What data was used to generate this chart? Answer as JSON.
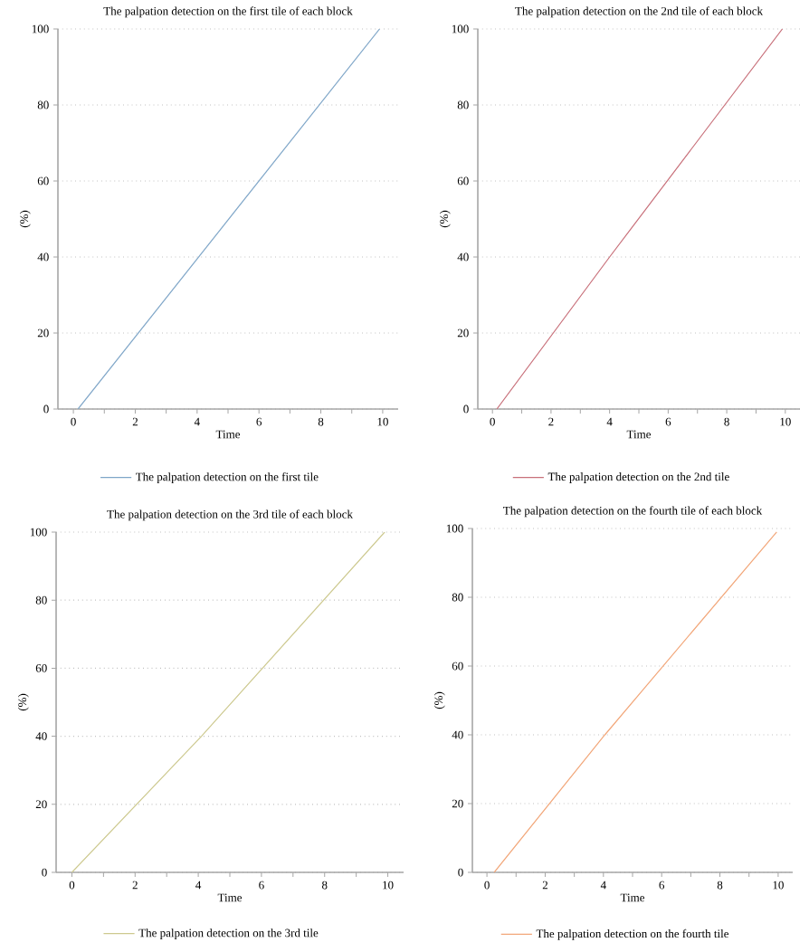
{
  "chart_data": [
    {
      "type": "line",
      "title": "The palpation detection on the first tile of each block",
      "xlabel": "Time",
      "ylabel": "(%)",
      "xlim": [
        -0.5,
        10.5
      ],
      "ylim": [
        0,
        100
      ],
      "xticks": [
        0,
        {
          "value": 1,
          "label": null
        },
        2,
        {
          "value": 3,
          "label": null
        },
        4,
        {
          "value": 5,
          "label": null
        },
        6,
        {
          "value": 7,
          "label": null
        },
        8,
        {
          "value": 9,
          "label": null
        },
        10
      ],
      "yticks": [
        0,
        20,
        40,
        60,
        80,
        100
      ],
      "grid": "y",
      "legend": "bottom",
      "series": [
        {
          "name": "The palpation detection on the first tile",
          "color": "#7fa6c8",
          "x": [
            0.15,
            4.05,
            9.9
          ],
          "values": [
            0,
            40,
            100
          ]
        }
      ]
    },
    {
      "type": "line",
      "title": "The palpation detection on the 2nd tile of each block",
      "xlabel": "Time",
      "ylabel": "(%)",
      "xlim": [
        -0.5,
        10.5
      ],
      "ylim": [
        0,
        100
      ],
      "xticks": [
        0,
        {
          "value": 1,
          "label": null
        },
        2,
        {
          "value": 3,
          "label": null
        },
        4,
        {
          "value": 5,
          "label": null
        },
        6,
        {
          "value": 7,
          "label": null
        },
        8,
        {
          "value": 9,
          "label": null
        },
        10
      ],
      "yticks": [
        0,
        20,
        40,
        60,
        80,
        100
      ],
      "grid": "y",
      "legend": "bottom",
      "series": [
        {
          "name": "The palpation detection on the 2nd tile",
          "color": "#c8707a",
          "x": [
            0.15,
            4.0,
            9.9
          ],
          "values": [
            0,
            40,
            100
          ]
        }
      ]
    },
    {
      "type": "line",
      "title": "The palpation detection on the 3rd tile of each block",
      "xlabel": "Time",
      "ylabel": "(%)",
      "xlim": [
        -0.5,
        10.5
      ],
      "ylim": [
        0,
        100
      ],
      "xticks": [
        0,
        {
          "value": 1,
          "label": null
        },
        2,
        {
          "value": 3,
          "label": null
        },
        4,
        {
          "value": 5,
          "label": null
        },
        6,
        {
          "value": 7,
          "label": null
        },
        8,
        {
          "value": 9,
          "label": null
        },
        10
      ],
      "yticks": [
        0,
        20,
        40,
        60,
        80,
        100
      ],
      "grid": "y",
      "legend": "bottom",
      "series": [
        {
          "name": "The palpation detection on the 3rd tile",
          "color": "#cdc98f",
          "x": [
            0,
            4.1,
            9.9
          ],
          "values": [
            0,
            40,
            100
          ]
        }
      ]
    },
    {
      "type": "line",
      "title": "The palpation detection on the fourth tile of each block",
      "xlabel": "Time",
      "ylabel": "(%)",
      "xlim": [
        -0.5,
        10.5
      ],
      "ylim": [
        0,
        100
      ],
      "xticks": [
        0,
        {
          "value": 1,
          "label": null
        },
        2,
        {
          "value": 3,
          "label": null
        },
        4,
        {
          "value": 5,
          "label": null
        },
        6,
        {
          "value": 7,
          "label": null
        },
        8,
        {
          "value": 9,
          "label": null
        },
        10
      ],
      "yticks": [
        0,
        20,
        40,
        60,
        80,
        100
      ],
      "grid": "y",
      "legend": "bottom",
      "series": [
        {
          "name": "The palpation detection on the fourth tile",
          "color": "#f2a77a",
          "x": [
            0.25,
            4.05,
            9.95
          ],
          "values": [
            0,
            40,
            99
          ]
        }
      ]
    }
  ]
}
